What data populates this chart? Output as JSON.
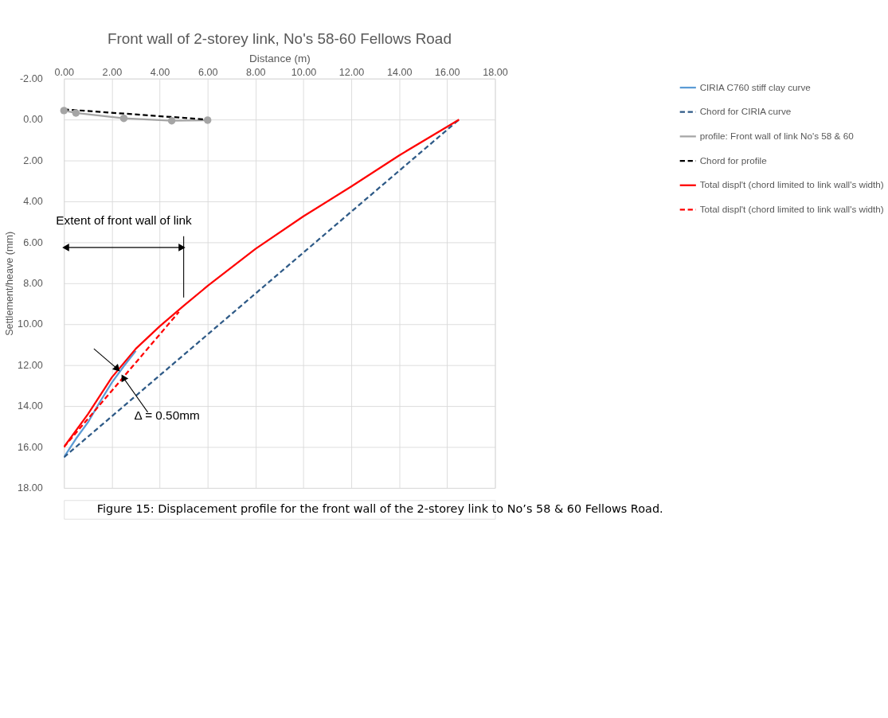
{
  "chart_data": {
    "type": "line",
    "title": "Front wall of 2-storey link, No's 58-60 Fellows Road",
    "xlabel": "Distance (m)",
    "ylabel": "Settlement/heave (mm)",
    "xlim": [
      0,
      18
    ],
    "ylim": [
      18,
      -2
    ],
    "xticks": [
      {
        "value": 0,
        "label": "0.00"
      },
      {
        "value": 2,
        "label": "2.00"
      },
      {
        "value": 4,
        "label": "4.00"
      },
      {
        "value": 6,
        "label": "6.00"
      },
      {
        "value": 8,
        "label": "8.00"
      },
      {
        "value": 10,
        "label": "10.00"
      },
      {
        "value": 12,
        "label": "12.00"
      },
      {
        "value": 14,
        "label": "14.00"
      },
      {
        "value": 16,
        "label": "16.00"
      },
      {
        "value": 18,
        "label": "18.00"
      }
    ],
    "yticks": [
      {
        "value": -2,
        "label": "-2.00"
      },
      {
        "value": 0,
        "label": "0.00"
      },
      {
        "value": 2,
        "label": "2.00"
      },
      {
        "value": 4,
        "label": "4.00"
      },
      {
        "value": 6,
        "label": "6.00"
      },
      {
        "value": 8,
        "label": "8.00"
      },
      {
        "value": 10,
        "label": "10.00"
      },
      {
        "value": 12,
        "label": "12.00"
      },
      {
        "value": 14,
        "label": "14.00"
      },
      {
        "value": 16,
        "label": "16.00"
      },
      {
        "value": 18,
        "label": "18.00"
      }
    ],
    "grid": true,
    "legend": "right",
    "series": [
      {
        "name": "CIRIA C760 stiff clay curve",
        "color": "#5b9bd5",
        "line_style": "solid",
        "marker": "none",
        "x": [
          0,
          0.5,
          1,
          1.5,
          2,
          2.5,
          3
        ],
        "values": [
          16.5,
          15.6,
          14.8,
          13.8,
          12.85,
          12.05,
          11.3
        ]
      },
      {
        "name": "Chord for CIRIA curve",
        "color": "#2e5a87",
        "line_style": "dashed",
        "marker": "none",
        "x": [
          0,
          16.5
        ],
        "values": [
          16.5,
          0
        ]
      },
      {
        "name": "profile: Front wall of link No's 58 & 60",
        "color": "#a5a5a5",
        "line_style": "solid",
        "marker": "circle",
        "x": [
          0,
          0.5,
          2.5,
          4.5,
          6
        ],
        "values": [
          -0.44,
          -0.32,
          -0.06,
          0.06,
          0.03
        ]
      },
      {
        "name": "Chord for profile",
        "color": "#000000",
        "line_style": "dashed",
        "marker": "none",
        "x": [
          0,
          6
        ],
        "values": [
          -0.5,
          0
        ]
      },
      {
        "name": "Total displ't (chord limited to link wall's width)",
        "color": "#ff0000",
        "line_style": "solid",
        "marker": "none",
        "x": [
          0,
          1,
          2,
          3,
          4,
          5,
          6,
          8,
          10,
          12,
          14,
          16,
          16.5
        ],
        "values": [
          16.0,
          14.4,
          12.6,
          11.2,
          10.1,
          9.1,
          8.13,
          6.32,
          4.73,
          3.27,
          1.75,
          0.35,
          0
        ]
      },
      {
        "name": "Total displ't (chord limited to link wall's width)",
        "color": "#ff0000",
        "line_style": "dashed",
        "marker": "none",
        "x": [
          0,
          4.8
        ],
        "values": [
          16.0,
          9.4
        ]
      }
    ],
    "annotations": [
      "Extent of front wall of link",
      {
        "text": "Δ = 0.50mm",
        "x": 2.4,
        "y": 12.3
      },
      "Figure 15:  Displacement profile for the front wall of the 2-storey link to No’s 58 & 60 Fellows Road."
    ]
  }
}
